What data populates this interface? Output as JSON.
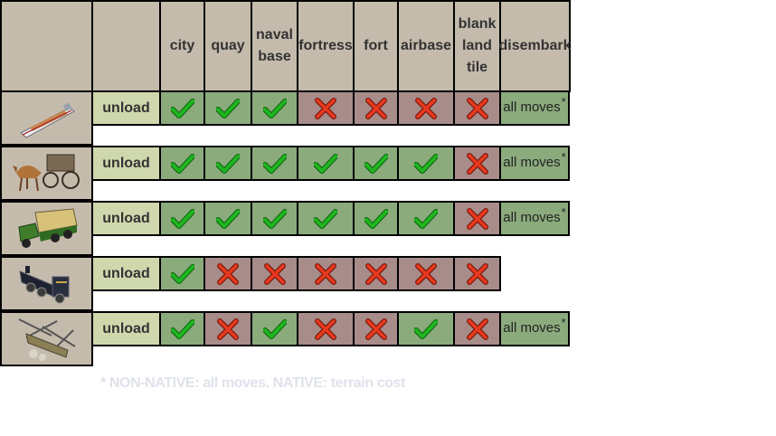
{
  "columns": [
    {
      "lines": [
        "city"
      ]
    },
    {
      "lines": [
        "quay"
      ]
    },
    {
      "lines": [
        "naval",
        "base"
      ]
    },
    {
      "lines": [
        "fortress"
      ]
    },
    {
      "lines": [
        "fort"
      ]
    },
    {
      "lines": [
        "airbase"
      ]
    },
    {
      "lines": [
        "blank",
        "land",
        "tile"
      ]
    },
    {
      "lines": [
        "disembark"
      ]
    }
  ],
  "rows": [
    {
      "unit_icon": "cargo-ship-icon",
      "action": "unload",
      "terrain": [
        true,
        true,
        true,
        false,
        false,
        false,
        false
      ],
      "disembark": "all moves",
      "disembark_mark": "*"
    },
    {
      "unit_icon": "horse-wagon-icon",
      "action": "unload",
      "terrain": [
        true,
        true,
        true,
        true,
        true,
        true,
        false
      ],
      "disembark": "all moves",
      "disembark_mark": "*"
    },
    {
      "unit_icon": "cargo-truck-icon",
      "action": "unload",
      "terrain": [
        true,
        true,
        true,
        true,
        true,
        true,
        false
      ],
      "disembark": "all moves",
      "disembark_mark": "*"
    },
    {
      "unit_icon": "steam-locomotive-icon",
      "action": "unload",
      "terrain": [
        true,
        false,
        false,
        false,
        false,
        false,
        false
      ],
      "disembark": null,
      "disembark_mark": null
    },
    {
      "unit_icon": "transport-helicopter-icon",
      "action": "unload",
      "terrain": [
        true,
        false,
        true,
        false,
        false,
        true,
        false
      ],
      "disembark": "all moves",
      "disembark_mark": "*"
    }
  ],
  "footnote": "* NON-NATIVE: all moves.  NATIVE: terrain cost",
  "colors": {
    "header_bg": "#c4bbac",
    "unload_bg": "#cfd8ad",
    "yes_bg": "#8bab7d",
    "no_bg": "#a88c8a",
    "check": "#1fb51f",
    "cross": "#e8391f",
    "footnote_text": "#dfe2ea"
  }
}
